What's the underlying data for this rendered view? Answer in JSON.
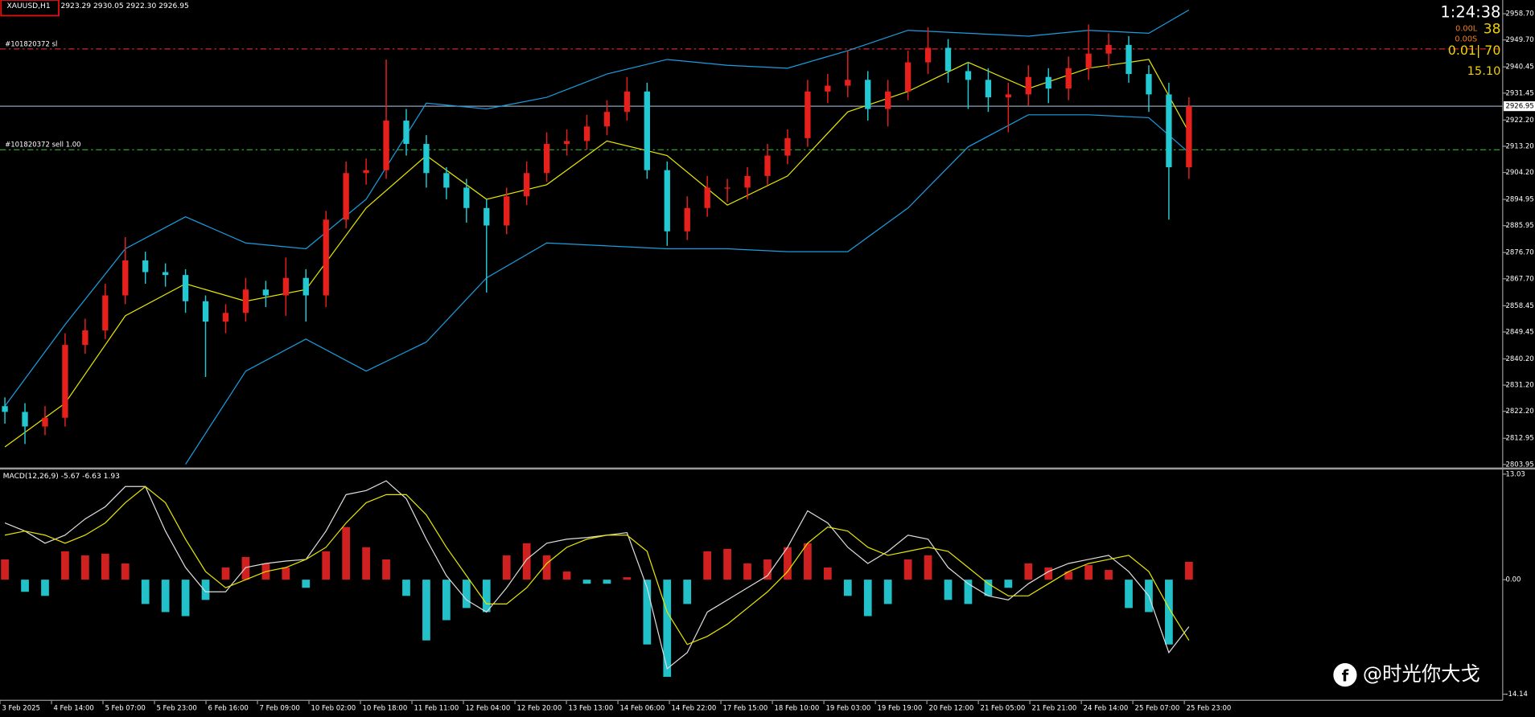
{
  "header": {
    "symbol": "XAUUSD,H1",
    "ohlc": "2923.29 2930.05 2922.30 2926.95"
  },
  "info": {
    "timer": "1:24:38",
    "long": "0.00L",
    "count": "38",
    "short": "0.00S",
    "lots": "0.01| 70",
    "profit": "15.10"
  },
  "watermark": "@时光你大戈",
  "chart_data": [
    {
      "type": "candlestick",
      "xtick_labels": [
        "3 Feb 2025",
        "4 Feb 14:00",
        "5 Feb 07:00",
        "5 Feb 23:00",
        "6 Feb 16:00",
        "7 Feb 09:00",
        "10 Feb 02:00",
        "10 Feb 18:00",
        "11 Feb 11:00",
        "12 Feb 04:00",
        "12 Feb 20:00",
        "13 Feb 13:00",
        "14 Feb 06:00",
        "14 Feb 22:00",
        "17 Feb 15:00",
        "18 Feb 10:00",
        "19 Feb 03:00",
        "19 Feb 19:00",
        "20 Feb 12:00",
        "21 Feb 05:00",
        "21 Feb 21:00",
        "24 Feb 14:00",
        "25 Feb 07:00",
        "25 Feb 23:00"
      ],
      "open": [
        2824,
        2822,
        2817,
        2820,
        2845,
        2850,
        2862,
        2874,
        2870,
        2869,
        2860,
        2853,
        2856,
        2864,
        2862,
        2868,
        2862,
        2888,
        2904,
        2905,
        2922,
        2914,
        2904,
        2899,
        2892,
        2886,
        2896,
        2904,
        2914,
        2915,
        2920,
        2925,
        2932,
        2905,
        2884,
        2892,
        2899,
        2899,
        2903,
        2910,
        2916,
        2932,
        2934,
        2936,
        2926,
        2932,
        2942,
        2947,
        2939,
        2936,
        2930,
        2931,
        2937,
        2933,
        2940,
        2945,
        2948,
        2938,
        2931,
        2906
      ],
      "high": [
        2827,
        2825,
        2824,
        2849,
        2854,
        2866,
        2882,
        2877,
        2873,
        2871,
        2862,
        2859,
        2868,
        2867,
        2875,
        2871,
        2891,
        2908,
        2909,
        2943,
        2926,
        2917,
        2906,
        2902,
        2895,
        2899,
        2908,
        2918,
        2919,
        2924,
        2929,
        2937,
        2935,
        2908,
        2896,
        2903,
        2902,
        2906,
        2914,
        2919,
        2936,
        2938,
        2946,
        2939,
        2936,
        2946,
        2954,
        2950,
        2942,
        2940,
        2935,
        2941,
        2940,
        2944,
        2955,
        2952,
        2951,
        2941,
        2935,
        2930
      ],
      "low": [
        2818,
        2811,
        2814,
        2817,
        2842,
        2847,
        2859,
        2866,
        2865,
        2856,
        2834,
        2849,
        2853,
        2858,
        2855,
        2853,
        2858,
        2885,
        2900,
        2902,
        2910,
        2899,
        2895,
        2887,
        2863,
        2883,
        2893,
        2901,
        2910,
        2912,
        2917,
        2922,
        2902,
        2879,
        2881,
        2889,
        2894,
        2895,
        2900,
        2907,
        2913,
        2928,
        2930,
        2922,
        2920,
        2929,
        2938,
        2935,
        2926,
        2925,
        2918,
        2927,
        2928,
        2929,
        2936,
        2940,
        2935,
        2925,
        2888,
        2902
      ],
      "close": [
        2822,
        2817,
        2820,
        2845,
        2850,
        2862,
        2874,
        2870,
        2869,
        2860,
        2853,
        2856,
        2864,
        2862,
        2868,
        2862,
        2888,
        2904,
        2905,
        2922,
        2914,
        2904,
        2899,
        2892,
        2886,
        2896,
        2904,
        2914,
        2915,
        2920,
        2925,
        2932,
        2905,
        2884,
        2892,
        2899,
        2899,
        2903,
        2910,
        2916,
        2932,
        2934,
        2936,
        2926,
        2932,
        2942,
        2947,
        2939,
        2936,
        2930,
        2931,
        2937,
        2933,
        2940,
        2945,
        2948,
        2938,
        2931,
        2906,
        2926.95
      ],
      "up_color": "#e8201c",
      "down_color": "#22c8d2",
      "overlays": [
        {
          "color": "#1a9ee0",
          "x": [
            0,
            3,
            6,
            9,
            12,
            15,
            18,
            21,
            24,
            27,
            30,
            33,
            36,
            39,
            42,
            45,
            48,
            51,
            54,
            57,
            59
          ],
          "values": [
            2824,
            2852,
            2878,
            2889,
            2880,
            2878,
            2895,
            2928,
            2926,
            2930,
            2938,
            2943,
            2941,
            2940,
            2946,
            2953,
            2952,
            2951,
            2953,
            2952,
            2960
          ]
        },
        {
          "color": "#1a9ee0",
          "x": [
            9,
            12,
            15,
            18,
            21,
            24,
            27,
            30,
            33,
            36,
            39,
            42,
            45,
            48,
            51,
            54,
            57,
            59
          ],
          "values": [
            2804,
            2836,
            2847,
            2836,
            2846,
            2868,
            2880,
            2879,
            2878,
            2878,
            2877,
            2877,
            2892,
            2913,
            2924,
            2924,
            2923,
            2911
          ]
        },
        {
          "color": "#e6e600",
          "x": [
            0,
            3,
            6,
            9,
            12,
            15,
            18,
            21,
            24,
            27,
            30,
            33,
            36,
            39,
            42,
            45,
            48,
            51,
            54,
            57,
            59
          ],
          "values": [
            2810,
            2825,
            2855,
            2866,
            2860,
            2864,
            2892,
            2910,
            2895,
            2900,
            2915,
            2910,
            2893,
            2903,
            2925,
            2932,
            2942,
            2933,
            2940,
            2943,
            2918
          ]
        }
      ],
      "levels": [
        {
          "label": "#101820372 sl",
          "value": 2946.6,
          "color": "#d02828"
        },
        {
          "label": "#101820372 sell 1.00",
          "value": 2912.0,
          "color": "#2cb82c"
        },
        {
          "value": 2926.95,
          "color": "#8aa4bb"
        }
      ],
      "ylim": [
        2802.9,
        2963.4
      ],
      "yticks": [
        {
          "value": 2958.7,
          "label": "2958.70"
        },
        {
          "value": 2949.7,
          "label": "2949.70"
        },
        2940.45,
        2931.45,
        {
          "value": 2922.2,
          "label": "2922.20"
        },
        {
          "value": 2913.2,
          "label": "2913.20"
        },
        {
          "value": 2904.2,
          "label": "2904.20"
        },
        2894.95,
        2885.95,
        {
          "value": 2876.7,
          "label": "2876.70"
        },
        {
          "value": 2867.7,
          "label": "2867.70"
        },
        2858.45,
        2849.45,
        {
          "value": 2840.2,
          "label": "2840.20"
        },
        {
          "value": 2831.2,
          "label": "2831.20"
        },
        {
          "value": 2822.2,
          "label": "2822.20"
        },
        2812.95,
        2803.95
      ]
    },
    {
      "type": "macd",
      "title": "MACD(12,26,9) -5.67 -6.63 1.93",
      "histogram": [
        2.5,
        -1.5,
        -2.0,
        3.5,
        3.0,
        3.2,
        2.0,
        -3.0,
        -4.0,
        -4.5,
        -2.5,
        1.5,
        2.8,
        2.0,
        1.5,
        -1.0,
        3.5,
        6.5,
        4.0,
        2.5,
        -2.0,
        -7.5,
        -5.0,
        -3.5,
        -4.0,
        3.0,
        4.5,
        3.0,
        1.0,
        -0.5,
        -0.5,
        0.3,
        -8.0,
        -12.0,
        -3.0,
        3.5,
        3.8,
        2.0,
        2.5,
        4.0,
        4.5,
        1.5,
        -2.0,
        -4.5,
        -3.0,
        2.5,
        3.0,
        -2.5,
        -3.0,
        -2.0,
        -1.0,
        2.0,
        1.5,
        1.0,
        1.8,
        1.2,
        -3.5,
        -4.0,
        -8.0,
        2.2
      ],
      "series": [
        {
          "color": "#dddddd",
          "values": [
            7.0,
            6.0,
            4.5,
            5.5,
            7.5,
            9.0,
            11.5,
            11.5,
            6.0,
            1.5,
            -1.5,
            -1.5,
            1.5,
            2.0,
            2.3,
            2.5,
            6.0,
            10.5,
            11.0,
            12.2,
            10.0,
            5.0,
            0.5,
            -2.5,
            -4.0,
            -1.0,
            2.5,
            4.5,
            5.0,
            5.2,
            5.5,
            5.8,
            -1.0,
            -11.0,
            -9.0,
            -4.0,
            -2.5,
            -1.0,
            0.5,
            4.0,
            8.5,
            7.0,
            4.0,
            2.0,
            3.5,
            5.5,
            5.0,
            1.5,
            -0.5,
            -2.0,
            -2.5,
            -0.5,
            1.0,
            2.0,
            2.5,
            3.0,
            1.0,
            -2.0,
            -9.0,
            -5.8
          ]
        },
        {
          "color": "#e6e600",
          "values": [
            5.5,
            6.0,
            5.5,
            4.5,
            5.5,
            7.0,
            9.5,
            11.5,
            9.5,
            5.0,
            1.0,
            -1.0,
            0.0,
            1.0,
            1.5,
            2.5,
            4.0,
            7.0,
            9.5,
            10.5,
            10.5,
            8.0,
            4.0,
            0.5,
            -3.0,
            -3.0,
            -1.0,
            2.0,
            4.0,
            5.0,
            5.5,
            5.5,
            3.5,
            -4.0,
            -8.0,
            -7.0,
            -5.5,
            -3.5,
            -1.5,
            1.0,
            4.5,
            6.5,
            6.0,
            4.0,
            3.0,
            3.5,
            4.0,
            3.5,
            1.5,
            -0.5,
            -2.0,
            -2.0,
            -0.5,
            1.0,
            2.0,
            2.5,
            3.0,
            1.0,
            -3.5,
            -7.5
          ]
        }
      ],
      "pos_color": "#d02020",
      "neg_color": "#22c0c8",
      "ylim": [
        -14.9,
        13.6
      ],
      "yticks": [
        13.03,
        {
          "value": 0,
          "label": "0.00"
        },
        -14.14
      ]
    }
  ]
}
